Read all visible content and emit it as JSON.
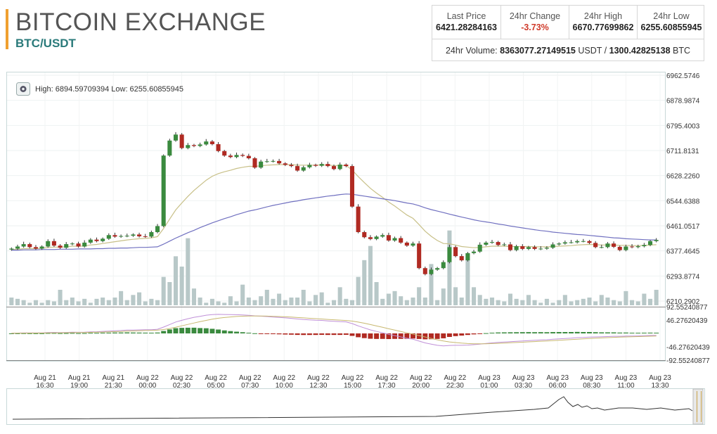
{
  "header": {
    "title": "BITCOIN EXCHANGE",
    "pair": "BTC/USDT"
  },
  "stats": [
    {
      "label": "Last Price",
      "value": "6421.28284163"
    },
    {
      "label": "24hr Change",
      "value": "-3.73%"
    },
    {
      "label": "24hr High",
      "value": "6670.77699862"
    },
    {
      "label": "24hr Low",
      "value": "6255.60855945"
    }
  ],
  "volume": {
    "label": "24hr Volume:",
    "usdt": "8363077.27149515",
    "usdt_unit": "USDT",
    "sep": "/",
    "btc": "1300.42825138",
    "btc_unit": "BTC"
  },
  "colors": {
    "up": "#3a8a3e",
    "down": "#b02a22",
    "ema_short": "#c8c088",
    "ema_long": "#7070c0",
    "volume": "#b8c8c8",
    "macd": "#c090d8",
    "signal": "#c8b870"
  },
  "chart_data": {
    "type": "candlestick",
    "hilo_label": "High: 6894.59709394   Low: 6255.60855945",
    "y_ticks": [
      "6962.5746",
      "6878.9874",
      "6795.4003",
      "6711.8131",
      "6628.2260",
      "6544.6388",
      "6461.0517",
      "6377.4645",
      "6293.8774",
      "6210.2902"
    ],
    "ylim": [
      6210.2902,
      6962.5746
    ],
    "macd_ticks": [
      "92.55240877",
      "46.27620439",
      "-46.27620439",
      "-92.55240877"
    ],
    "macd_ylim": [
      -92.55240877,
      92.55240877
    ],
    "x_ticks": [
      [
        "Aug 21",
        "16:30"
      ],
      [
        "Aug 21",
        "19:00"
      ],
      [
        "Aug 21",
        "21:30"
      ],
      [
        "Aug 22",
        "00:00"
      ],
      [
        "Aug 22",
        "02:30"
      ],
      [
        "Aug 22",
        "05:00"
      ],
      [
        "Aug 22",
        "07:30"
      ],
      [
        "Aug 22",
        "10:00"
      ],
      [
        "Aug 22",
        "12:30"
      ],
      [
        "Aug 22",
        "15:00"
      ],
      [
        "Aug 22",
        "17:30"
      ],
      [
        "Aug 22",
        "20:00"
      ],
      [
        "Aug 22",
        "22:30"
      ],
      [
        "Aug 23",
        "01:00"
      ],
      [
        "Aug 23",
        "03:30"
      ],
      [
        "Aug 23",
        "06:00"
      ],
      [
        "Aug 23",
        "08:30"
      ],
      [
        "Aug 23",
        "11:00"
      ],
      [
        "Aug 23",
        "13:30"
      ]
    ],
    "close": [
      6385,
      6392,
      6400,
      6390,
      6385,
      6392,
      6410,
      6395,
      6388,
      6400,
      6402,
      6392,
      6405,
      6415,
      6410,
      6418,
      6430,
      6425,
      6427,
      6428,
      6432,
      6426,
      6425,
      6440,
      6460,
      6695,
      6745,
      6765,
      6720,
      6730,
      6727,
      6732,
      6742,
      6733,
      6710,
      6695,
      6690,
      6697,
      6694,
      6686,
      6655,
      6675,
      6676,
      6677,
      6669,
      6664,
      6660,
      6645,
      6656,
      6664,
      6661,
      6667,
      6660,
      6650,
      6665,
      6660,
      6525,
      6440,
      6423,
      6417,
      6425,
      6430,
      6412,
      6420,
      6405,
      6395,
      6402,
      6320,
      6300,
      6315,
      6320,
      6340,
      6390,
      6360,
      6346,
      6370,
      6375,
      6398,
      6405,
      6407,
      6397,
      6399,
      6380,
      6393,
      6384,
      6390,
      6384,
      6385,
      6388,
      6399,
      6402,
      6406,
      6406,
      6410,
      6410,
      6404,
      6390,
      6390,
      6402,
      6391,
      6380,
      6392,
      6390,
      6393,
      6397,
      6410,
      6414
    ],
    "volume": [
      6,
      5,
      4,
      2,
      4,
      2,
      4,
      3,
      12,
      4,
      6,
      3,
      5,
      2,
      5,
      6,
      4,
      6,
      11,
      4,
      8,
      10,
      3,
      5,
      4,
      22,
      18,
      38,
      30,
      52,
      13,
      6,
      2,
      5,
      3,
      2,
      7,
      3,
      16,
      6,
      4,
      7,
      12,
      5,
      9,
      4,
      6,
      6,
      12,
      3,
      8,
      10,
      2,
      4,
      14,
      5,
      4,
      22,
      35,
      46,
      18,
      5,
      9,
      11,
      7,
      4,
      6,
      14,
      6,
      32,
      4,
      13,
      58,
      14,
      6,
      40,
      14,
      8,
      5,
      6,
      4,
      3,
      9,
      5,
      4,
      8,
      4,
      2,
      5,
      2,
      4,
      8,
      3,
      4,
      5,
      6,
      3,
      8,
      6,
      4,
      3,
      11,
      4,
      3,
      9,
      5,
      12
    ],
    "ema_short": [
      6382,
      6383,
      6385,
      6385,
      6385,
      6386,
      6389,
      6390,
      6390,
      6391,
      6393,
      6393,
      6394,
      6397,
      6399,
      6402,
      6405,
      6408,
      6411,
      6414,
      6416,
      6418,
      6419,
      6421,
      6425,
      6452,
      6483,
      6514,
      6537,
      6559,
      6579,
      6596,
      6613,
      6626,
      6635,
      6641,
      6646,
      6652,
      6656,
      6659,
      6659,
      6661,
      6663,
      6664,
      6665,
      6665,
      6665,
      6663,
      6663,
      6663,
      6663,
      6664,
      6663,
      6662,
      6662,
      6662,
      6647,
      6625,
      6605,
      6586,
      6570,
      6556,
      6540,
      6527,
      6512,
      6497,
      6486,
      6465,
      6443,
      6426,
      6412,
      6402,
      6401,
      6397,
      6392,
      6390,
      6388,
      6389,
      6391,
      6393,
      6393,
      6393,
      6392,
      6392,
      6392,
      6392,
      6391,
      6391,
      6391,
      6392,
      6393,
      6394,
      6395,
      6397,
      6398,
      6399,
      6398,
      6397,
      6397,
      6397,
      6396,
      6396,
      6395,
      6395,
      6396,
      6397,
      6398
    ],
    "ema_long": [
      6380,
      6380,
      6381,
      6381,
      6381,
      6382,
      6382,
      6382,
      6383,
      6383,
      6383,
      6384,
      6384,
      6384,
      6385,
      6385,
      6386,
      6386,
      6387,
      6387,
      6388,
      6389,
      6389,
      6390,
      6391,
      6400,
      6410,
      6420,
      6429,
      6438,
      6446,
      6455,
      6463,
      6471,
      6478,
      6485,
      6491,
      6498,
      6504,
      6510,
      6514,
      6519,
      6524,
      6529,
      6533,
      6537,
      6541,
      6544,
      6548,
      6551,
      6554,
      6557,
      6560,
      6562,
      6565,
      6567,
      6566,
      6563,
      6560,
      6557,
      6554,
      6551,
      6548,
      6545,
      6541,
      6537,
      6534,
      6528,
      6521,
      6515,
      6510,
      6505,
      6500,
      6495,
      6490,
      6486,
      6481,
      6477,
      6474,
      6471,
      6467,
      6464,
      6460,
      6457,
      6454,
      6451,
      6448,
      6445,
      6443,
      6440,
      6438,
      6436,
      6434,
      6432,
      6431,
      6429,
      6427,
      6425,
      6423,
      6421,
      6420,
      6418,
      6417,
      6416,
      6415,
      6414,
      6414
    ]
  },
  "navigator": {
    "label": "navigator"
  }
}
